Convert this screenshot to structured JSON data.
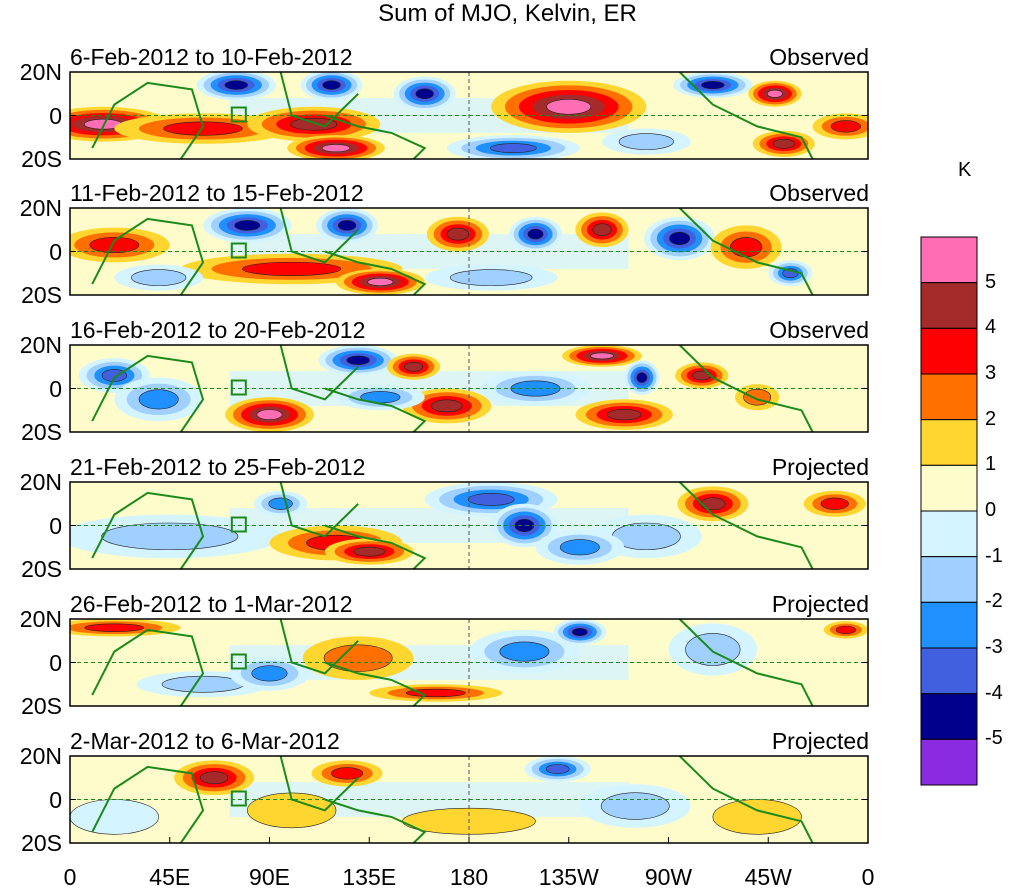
{
  "title": "Sum of MJO, Kelvin, ER",
  "panels": [
    {
      "date_range": "6-Feb-2012 to 10-Feb-2012",
      "status": "Observed"
    },
    {
      "date_range": "11-Feb-2012 to 15-Feb-2012",
      "status": "Observed"
    },
    {
      "date_range": "16-Feb-2012 to 20-Feb-2012",
      "status": "Observed"
    },
    {
      "date_range": "21-Feb-2012 to 25-Feb-2012",
      "status": "Projected"
    },
    {
      "date_range": "26-Feb-2012 to 1-Mar-2012",
      "status": "Projected"
    },
    {
      "date_range": "2-Mar-2012 to 6-Mar-2012",
      "status": "Projected"
    }
  ],
  "lat_labels": [
    "20N",
    "0",
    "20S"
  ],
  "lon_labels": [
    "0",
    "45E",
    "90E",
    "135E",
    "180",
    "135W",
    "90W",
    "45W",
    "0"
  ],
  "colorbar": {
    "unit": "K",
    "labels": [
      "5",
      "4",
      "3",
      "2",
      "1",
      "0",
      "-1",
      "-2",
      "-3",
      "-4",
      "-5"
    ],
    "colors": [
      "#ff6eb4",
      "#a52a2a",
      "#ff0000",
      "#ff7000",
      "#ffd530",
      "#fffccc",
      "#d4f4ff",
      "#a0d0ff",
      "#2090ff",
      "#4060e0",
      "#00008c",
      "#8a2be2"
    ]
  }
}
